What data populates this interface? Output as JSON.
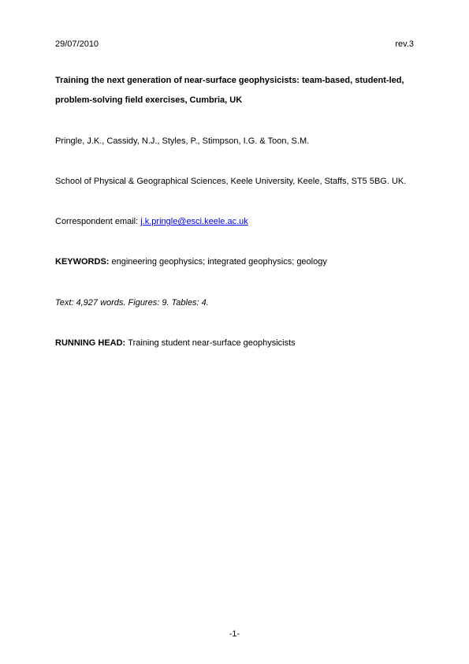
{
  "header": {
    "date": "29/07/2010",
    "revision": "rev.3"
  },
  "title": "Training the next generation of near-surface geophysicists: team-based, student-led, problem-solving field exercises, Cumbria, UK",
  "authors": "Pringle, J.K., Cassidy, N.J., Styles, P., Stimpson, I.G. & Toon, S.M.",
  "affiliation": "School of Physical & Geographical Sciences, Keele University, Keele, Staffs, ST5 5BG. UK.",
  "correspondent_label": "Correspondent email: ",
  "correspondent_email": "j.k.pringle@esci.keele.ac.uk",
  "keywords_label": "KEYWORDS: ",
  "keywords_text": "engineering geophysics; integrated geophysics; geology",
  "stats": "Text: 4,927 words. Figures: 9. Tables: 4.",
  "running_head_label": "RUNNING HEAD: ",
  "running_head_text": "Training student near-surface geophysicists",
  "page_number": "-1-"
}
